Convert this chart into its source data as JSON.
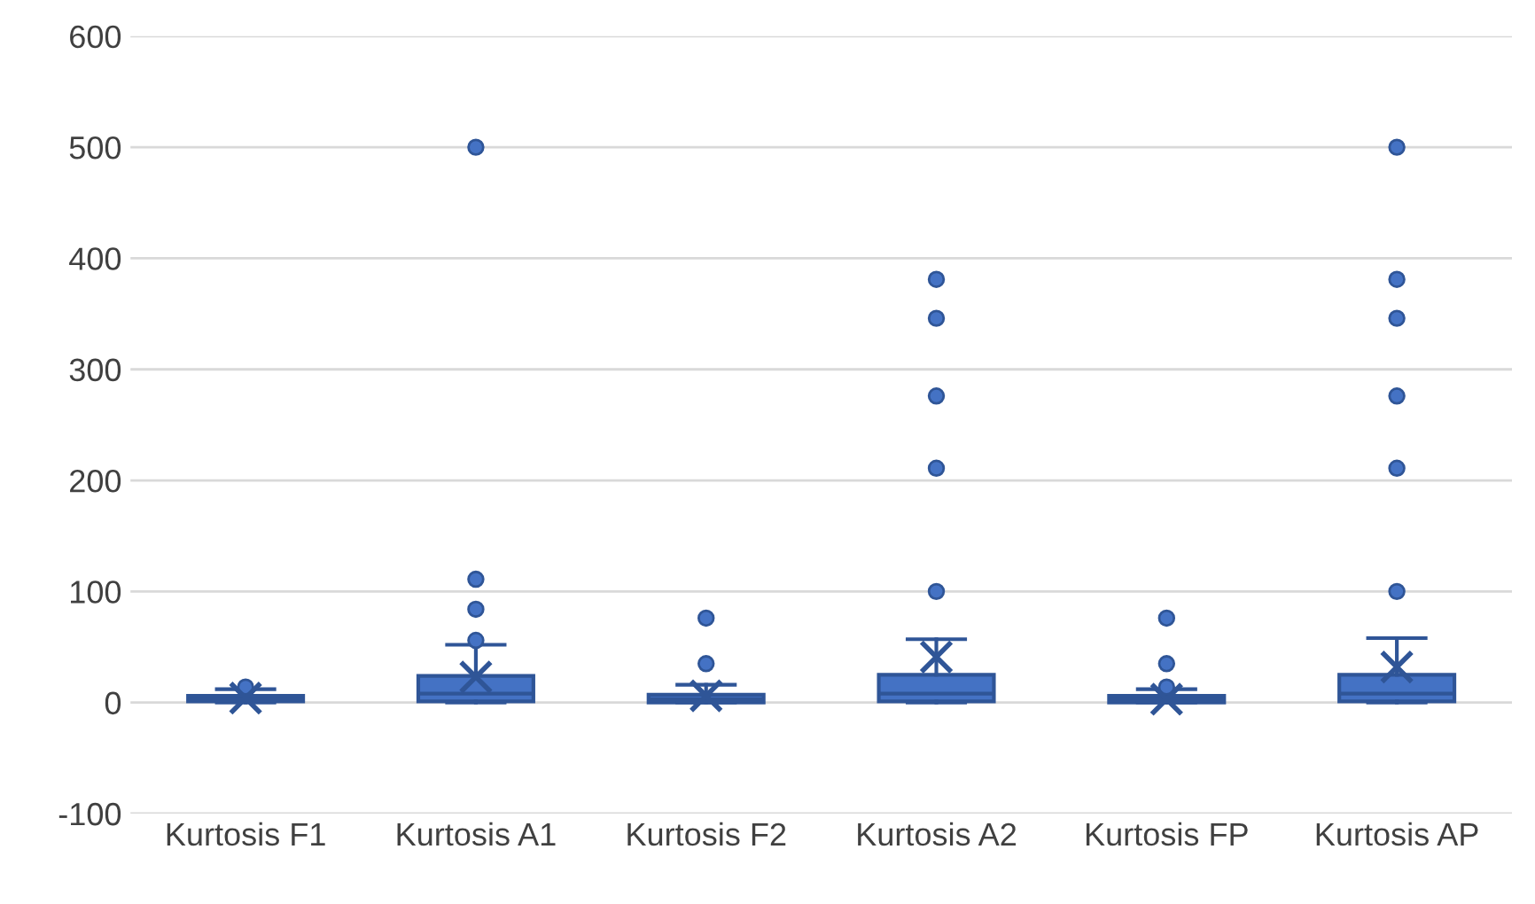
{
  "chart_data": {
    "type": "box",
    "categories": [
      "Kurtosis F1",
      "Kurtosis A1",
      "Kurtosis F2",
      "Kurtosis A2",
      "Kurtosis FP",
      "Kurtosis AP"
    ],
    "series": [
      {
        "color": "#4472c4",
        "boxes": [
          {
            "low": 0,
            "q1": 1,
            "median": 3,
            "q3": 6,
            "high": 12,
            "mean": 4,
            "outliers": [
              14
            ]
          },
          {
            "low": 0,
            "q1": 1,
            "median": 8,
            "q3": 24,
            "high": 52,
            "mean": 23,
            "outliers": [
              56,
              84,
              111,
              500
            ]
          },
          {
            "low": 0,
            "q1": 0,
            "median": 3,
            "q3": 7,
            "high": 16,
            "mean": 6,
            "outliers": [
              35,
              76
            ]
          },
          {
            "low": 0,
            "q1": 1,
            "median": 8,
            "q3": 25,
            "high": 57,
            "mean": 41,
            "outliers": [
              100,
              211,
              276,
              346,
              381
            ]
          },
          {
            "low": 0,
            "q1": 0,
            "median": 3,
            "q3": 6,
            "high": 12,
            "mean": 3,
            "outliers": [
              14,
              35,
              76
            ]
          },
          {
            "low": 0,
            "q1": 1,
            "median": 8,
            "q3": 25,
            "high": 58,
            "mean": 32,
            "outliers": [
              100,
              211,
              276,
              346,
              381,
              500
            ]
          }
        ]
      }
    ],
    "ylim": [
      -100,
      600
    ],
    "yticks": [
      -100,
      0,
      100,
      200,
      300,
      400,
      500,
      600
    ],
    "grid": "y",
    "legend": false
  }
}
